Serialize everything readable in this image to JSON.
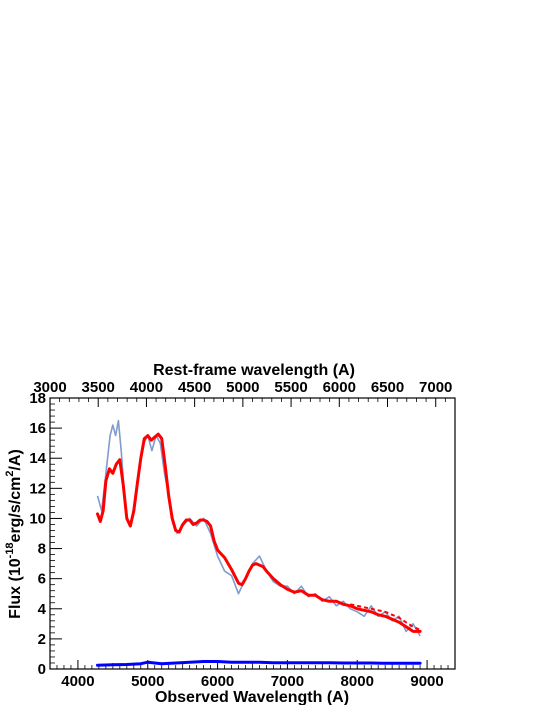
{
  "chart_data": {
    "type": "line",
    "title": "",
    "xlabel": "Observed Wavelength (A)",
    "ylabel_prefix": "Flux (10",
    "ylabel_exp": "-18",
    "ylabel_mid": "erg/s/cm",
    "ylabel_exp2": "2",
    "ylabel_suffix": "/A)",
    "top_xlabel": "Rest-frame wavelength (A)",
    "xlim": [
      3600,
      9400
    ],
    "ylim": [
      0,
      18
    ],
    "top_xlim": [
      3000,
      7200
    ],
    "x_ticks": [
      4000,
      5000,
      6000,
      7000,
      8000,
      9000
    ],
    "y_ticks": [
      0,
      2,
      4,
      6,
      8,
      10,
      12,
      14,
      16,
      18
    ],
    "top_ticks": [
      3000,
      3500,
      4000,
      4500,
      5000,
      5500,
      6000,
      6500,
      7000
    ],
    "grid": false,
    "colors": {
      "observed": "#7f9ccf",
      "model": "#ff0000",
      "error": "#0000ff"
    },
    "series": [
      {
        "key": "observed",
        "style": "thin-noisy",
        "x": [
          4280,
          4340,
          4400,
          4460,
          4500,
          4540,
          4580,
          4620,
          4660,
          4700,
          4760,
          4820,
          4880,
          4940,
          5000,
          5060,
          5120,
          5180,
          5240,
          5300,
          5360,
          5420,
          5500,
          5600,
          5700,
          5800,
          5900,
          6000,
          6100,
          6200,
          6300,
          6350,
          6400,
          6500,
          6600,
          6700,
          6800,
          6900,
          7000,
          7100,
          7200,
          7300,
          7400,
          7500,
          7600,
          7700,
          7800,
          7900,
          8000,
          8100,
          8200,
          8300,
          8400,
          8500,
          8600,
          8700,
          8800,
          8900
        ],
        "y": [
          11.5,
          10.5,
          13.0,
          15.5,
          16.2,
          15.5,
          16.5,
          14.5,
          12.0,
          10.0,
          9.5,
          11.5,
          13.5,
          15.0,
          15.5,
          14.5,
          15.5,
          15.0,
          13.0,
          11.5,
          10.0,
          9.0,
          9.5,
          10.0,
          9.5,
          10.0,
          9.0,
          7.5,
          6.5,
          6.2,
          5.0,
          5.5,
          6.0,
          7.0,
          7.5,
          6.5,
          5.8,
          5.5,
          5.5,
          5.0,
          5.5,
          4.8,
          5.0,
          4.5,
          4.8,
          4.2,
          4.5,
          4.0,
          3.8,
          3.5,
          4.2,
          3.5,
          3.8,
          3.2,
          3.5,
          2.5,
          3.0,
          2.2
        ]
      },
      {
        "key": "model",
        "style": "thick",
        "x": [
          4280,
          4320,
          4360,
          4400,
          4450,
          4500,
          4550,
          4600,
          4650,
          4700,
          4750,
          4800,
          4850,
          4900,
          4950,
          5000,
          5050,
          5100,
          5150,
          5200,
          5250,
          5300,
          5350,
          5400,
          5450,
          5500,
          5550,
          5600,
          5650,
          5700,
          5750,
          5800,
          5850,
          5900,
          5950,
          6000,
          6100,
          6200,
          6300,
          6350,
          6400,
          6450,
          6500,
          6550,
          6600,
          6650,
          6700,
          6800,
          6900,
          7000,
          7100,
          7200,
          7300,
          7400,
          7500,
          7600,
          7700,
          7800,
          7900,
          8000,
          8100,
          8200,
          8300,
          8400,
          8500,
          8600,
          8700,
          8800,
          8900
        ],
        "y": [
          10.3,
          9.8,
          10.5,
          12.5,
          13.3,
          13.0,
          13.6,
          13.9,
          12.2,
          10.0,
          9.5,
          10.5,
          12.3,
          14.0,
          15.3,
          15.5,
          15.2,
          15.4,
          15.6,
          15.3,
          13.5,
          11.5,
          10.0,
          9.2,
          9.1,
          9.6,
          9.9,
          9.9,
          9.6,
          9.7,
          9.9,
          9.9,
          9.8,
          9.5,
          8.5,
          7.9,
          7.4,
          6.6,
          5.7,
          5.6,
          6.0,
          6.5,
          6.9,
          7.0,
          6.9,
          6.8,
          6.5,
          6.0,
          5.6,
          5.3,
          5.1,
          5.2,
          4.9,
          4.9,
          4.6,
          4.5,
          4.5,
          4.3,
          4.2,
          4.0,
          3.9,
          3.8,
          3.6,
          3.5,
          3.3,
          3.1,
          2.8,
          2.5,
          2.5
        ]
      },
      {
        "key": "model-dashed",
        "style": "dashed",
        "x": [
          7900,
          8000,
          8100,
          8200,
          8300,
          8400,
          8500,
          8600,
          8700,
          8800,
          8900
        ],
        "y": [
          4.3,
          4.2,
          4.1,
          4.0,
          3.9,
          3.8,
          3.6,
          3.4,
          3.1,
          2.8,
          2.6
        ]
      },
      {
        "key": "error",
        "style": "thick",
        "x": [
          4280,
          4500,
          4700,
          4900,
          5000,
          5200,
          5400,
          5600,
          5800,
          6000,
          6200,
          6400,
          6600,
          6800,
          7000,
          7200,
          7400,
          7600,
          7800,
          8000,
          8200,
          8400,
          8600,
          8800,
          8900
        ],
        "y": [
          0.25,
          0.28,
          0.3,
          0.35,
          0.45,
          0.35,
          0.4,
          0.45,
          0.5,
          0.5,
          0.45,
          0.45,
          0.45,
          0.42,
          0.42,
          0.42,
          0.42,
          0.42,
          0.4,
          0.4,
          0.4,
          0.38,
          0.38,
          0.38,
          0.38
        ]
      }
    ]
  }
}
